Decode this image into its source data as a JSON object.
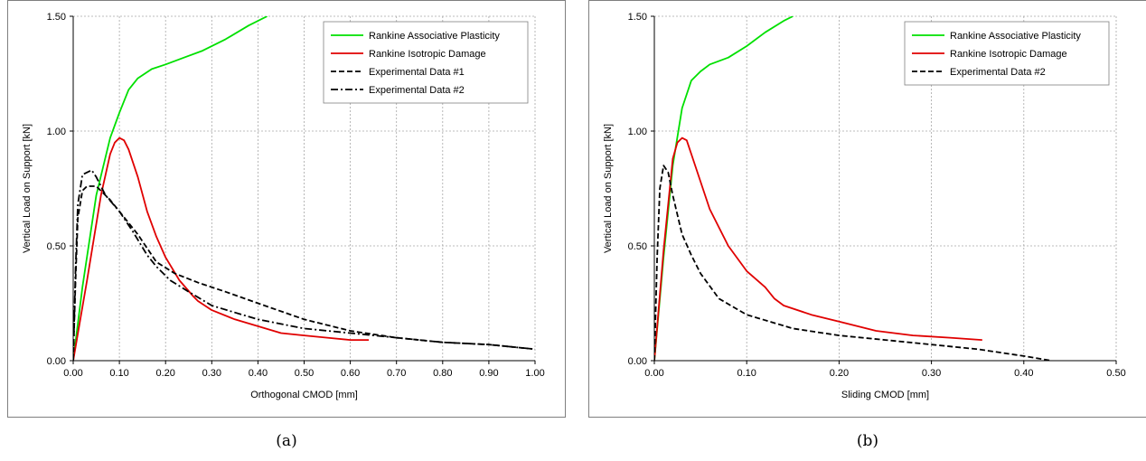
{
  "chart_data": [
    {
      "type": "line",
      "panel_label": "(a)",
      "xlabel": "Orthogonal CMOD [mm]",
      "ylabel": "Vertical Load on Support [kN]",
      "xlim": [
        0,
        1.0
      ],
      "ylim": [
        0,
        1.5
      ],
      "xticks": [
        "0.00",
        "0.10",
        "0.20",
        "0.30",
        "0.40",
        "0.50",
        "0.60",
        "0.70",
        "0.80",
        "0.90",
        "1.00"
      ],
      "yticks": [
        "0.00",
        "0.50",
        "1.00",
        "1.50"
      ],
      "grid": true,
      "legend_position": "top-right",
      "series": [
        {
          "name": "Rankine Associative Plasticity",
          "color": "#00e000",
          "dash": "solid",
          "x": [
            0,
            0.02,
            0.05,
            0.08,
            0.1,
            0.12,
            0.14,
            0.17,
            0.2,
            0.24,
            0.28,
            0.33,
            0.38,
            0.42
          ],
          "y": [
            0,
            0.32,
            0.72,
            0.97,
            1.08,
            1.18,
            1.23,
            1.27,
            1.29,
            1.32,
            1.35,
            1.4,
            1.46,
            1.5
          ]
        },
        {
          "name": "Rankine Isotropic Damage",
          "color": "#e00000",
          "dash": "solid",
          "x": [
            0,
            0.03,
            0.06,
            0.08,
            0.09,
            0.1,
            0.11,
            0.12,
            0.14,
            0.16,
            0.18,
            0.2,
            0.23,
            0.26,
            0.27,
            0.3,
            0.35,
            0.4,
            0.45,
            0.5,
            0.55,
            0.6,
            0.64
          ],
          "y": [
            0,
            0.35,
            0.72,
            0.9,
            0.95,
            0.97,
            0.96,
            0.92,
            0.8,
            0.65,
            0.54,
            0.45,
            0.35,
            0.28,
            0.26,
            0.22,
            0.18,
            0.15,
            0.12,
            0.11,
            0.1,
            0.09,
            0.09
          ]
        },
        {
          "name": "Experimental Data #1",
          "color": "#000000",
          "dash": "dashed",
          "x": [
            0,
            0.005,
            0.01,
            0.02,
            0.03,
            0.05,
            0.08,
            0.1,
            0.14,
            0.18,
            0.22,
            0.27,
            0.33,
            0.4,
            0.5,
            0.6,
            0.7,
            0.8,
            0.9,
            1.0
          ],
          "y": [
            0,
            0.35,
            0.62,
            0.74,
            0.76,
            0.76,
            0.7,
            0.65,
            0.55,
            0.43,
            0.38,
            0.34,
            0.3,
            0.25,
            0.18,
            0.13,
            0.1,
            0.08,
            0.07,
            0.05
          ]
        },
        {
          "name": "Experimental Data #2",
          "color": "#000000",
          "dash": "dashdot",
          "x": [
            0,
            0.005,
            0.01,
            0.02,
            0.04,
            0.05,
            0.07,
            0.1,
            0.13,
            0.16,
            0.18,
            0.21,
            0.25,
            0.3,
            0.35,
            0.4,
            0.45,
            0.5,
            0.6,
            0.7,
            0.8,
            0.9,
            1.0
          ],
          "y": [
            0,
            0.4,
            0.68,
            0.81,
            0.83,
            0.8,
            0.72,
            0.65,
            0.56,
            0.46,
            0.41,
            0.35,
            0.3,
            0.24,
            0.21,
            0.18,
            0.16,
            0.14,
            0.12,
            0.1,
            0.08,
            0.07,
            0.05
          ]
        }
      ]
    },
    {
      "type": "line",
      "panel_label": "(b)",
      "xlabel": "Sliding CMOD [mm]",
      "ylabel": "Vertical Load on Support [kN]",
      "xlim": [
        0,
        0.5
      ],
      "ylim": [
        0,
        1.5
      ],
      "xticks": [
        "0.00",
        "0.10",
        "0.20",
        "0.30",
        "0.40",
        "0.50"
      ],
      "yticks": [
        "0.00",
        "0.50",
        "1.00",
        "1.50"
      ],
      "grid": true,
      "legend_position": "top-right",
      "series": [
        {
          "name": "Rankine Associative Plasticity",
          "color": "#00e000",
          "dash": "solid",
          "x": [
            0,
            0.01,
            0.02,
            0.03,
            0.04,
            0.05,
            0.06,
            0.08,
            0.1,
            0.12,
            0.14,
            0.15
          ],
          "y": [
            0,
            0.45,
            0.85,
            1.1,
            1.22,
            1.26,
            1.29,
            1.32,
            1.37,
            1.43,
            1.48,
            1.5
          ]
        },
        {
          "name": "Rankine Isotropic Damage",
          "color": "#e00000",
          "dash": "solid",
          "x": [
            0,
            0.01,
            0.02,
            0.025,
            0.03,
            0.035,
            0.04,
            0.05,
            0.06,
            0.08,
            0.1,
            0.12,
            0.13,
            0.14,
            0.17,
            0.2,
            0.24,
            0.28,
            0.32,
            0.355
          ],
          "y": [
            0,
            0.48,
            0.88,
            0.95,
            0.97,
            0.96,
            0.9,
            0.78,
            0.66,
            0.5,
            0.39,
            0.32,
            0.27,
            0.24,
            0.2,
            0.17,
            0.13,
            0.11,
            0.1,
            0.09
          ]
        },
        {
          "name": "Experimental Data #2",
          "color": "#000000",
          "dash": "dashed",
          "x": [
            0,
            0.003,
            0.006,
            0.01,
            0.015,
            0.02,
            0.03,
            0.04,
            0.05,
            0.07,
            0.1,
            0.15,
            0.2,
            0.25,
            0.3,
            0.35,
            0.4,
            0.43
          ],
          "y": [
            0,
            0.45,
            0.75,
            0.85,
            0.82,
            0.72,
            0.55,
            0.46,
            0.38,
            0.27,
            0.2,
            0.14,
            0.11,
            0.09,
            0.07,
            0.05,
            0.02,
            0.0
          ]
        }
      ]
    }
  ]
}
